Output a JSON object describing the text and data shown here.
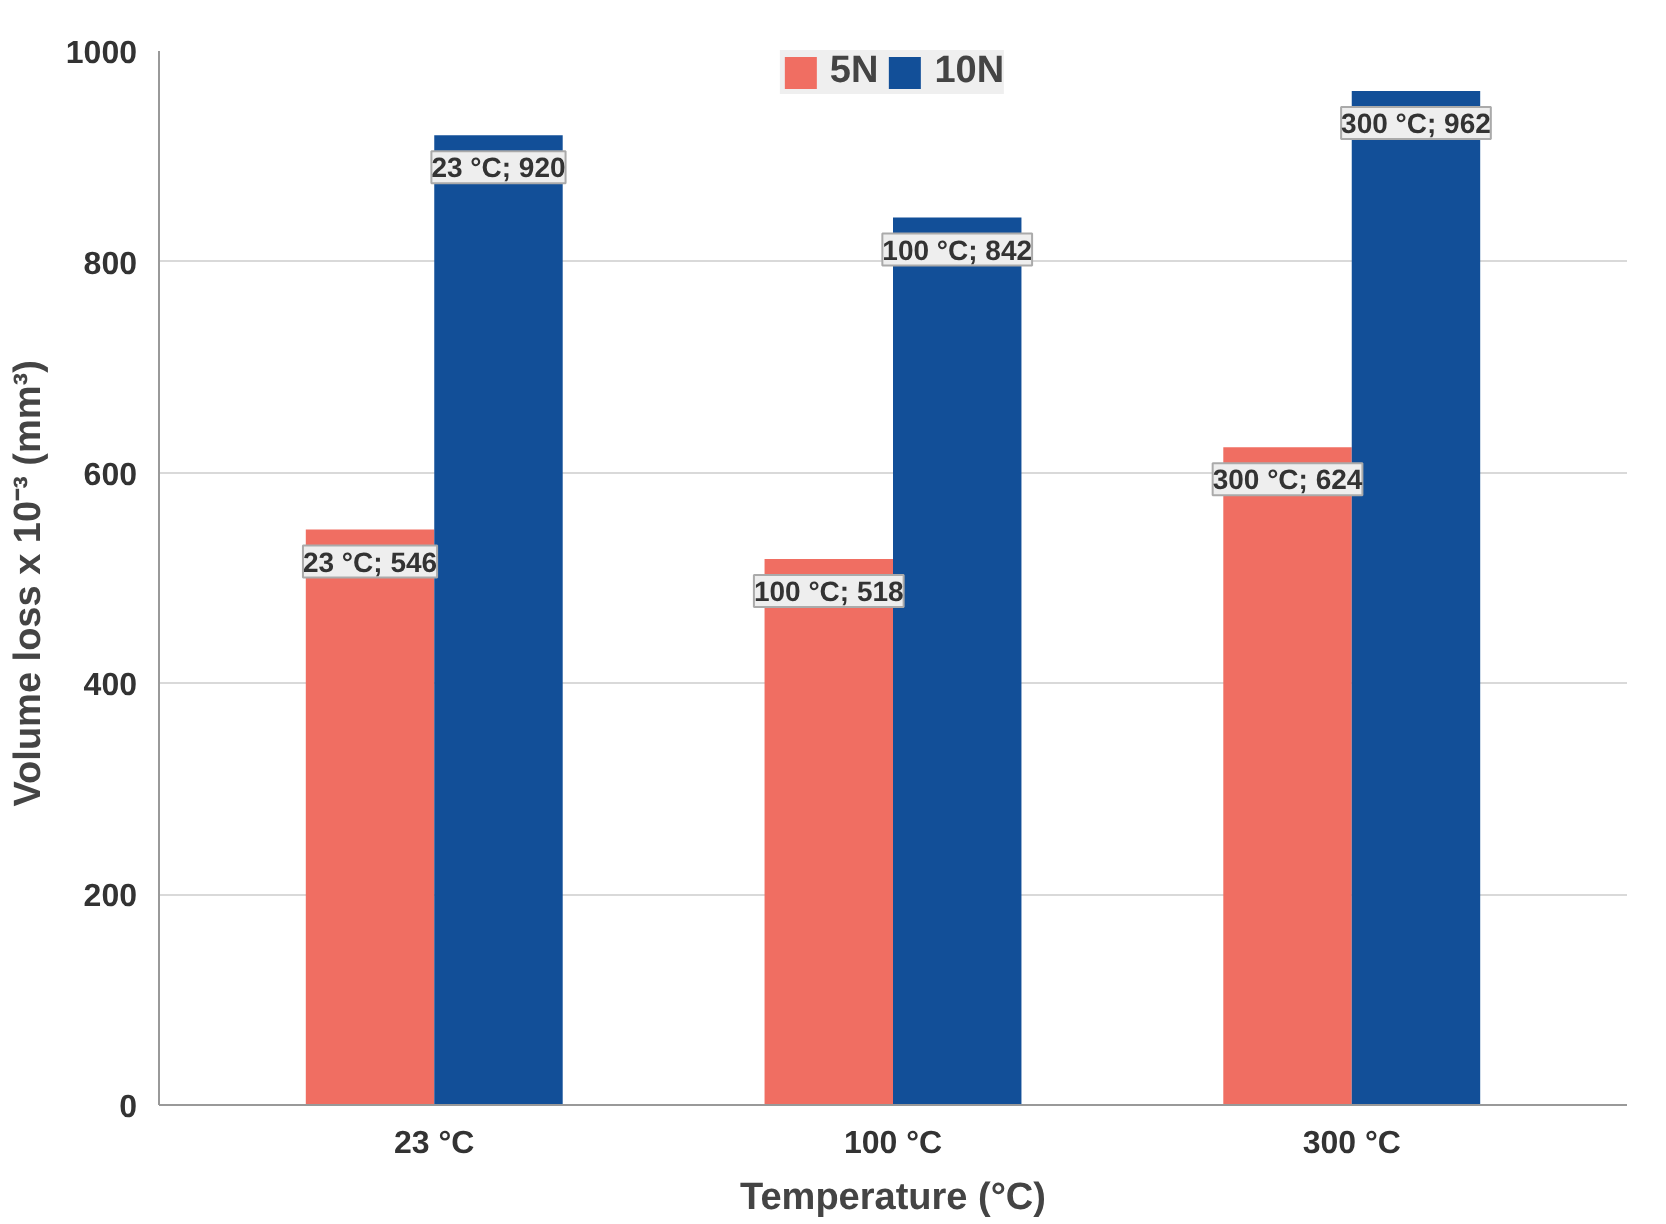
{
  "chart_data": {
    "type": "bar",
    "xlabel": "Temperature (°C)",
    "ylabel": "Volume loss x 10⁻³  (mm³)",
    "categories": [
      "23 °C",
      "100 °C",
      "300 °C"
    ],
    "series": [
      {
        "name": "5N",
        "color": "#f06e62",
        "values": [
          546,
          518,
          624
        ],
        "value_labels": [
          "23 °C; 546",
          "100 °C; 518",
          "300 °C; 624"
        ]
      },
      {
        "name": "10N",
        "color": "#124f98",
        "values": [
          920,
          842,
          962
        ],
        "value_labels": [
          "23 °C; 920",
          "100 °C; 842",
          "300 °C; 962"
        ]
      }
    ],
    "ylim": [
      0,
      1000
    ],
    "yticks": [
      0,
      200,
      400,
      600,
      800,
      1000
    ],
    "grid": "y",
    "legend": "top"
  }
}
